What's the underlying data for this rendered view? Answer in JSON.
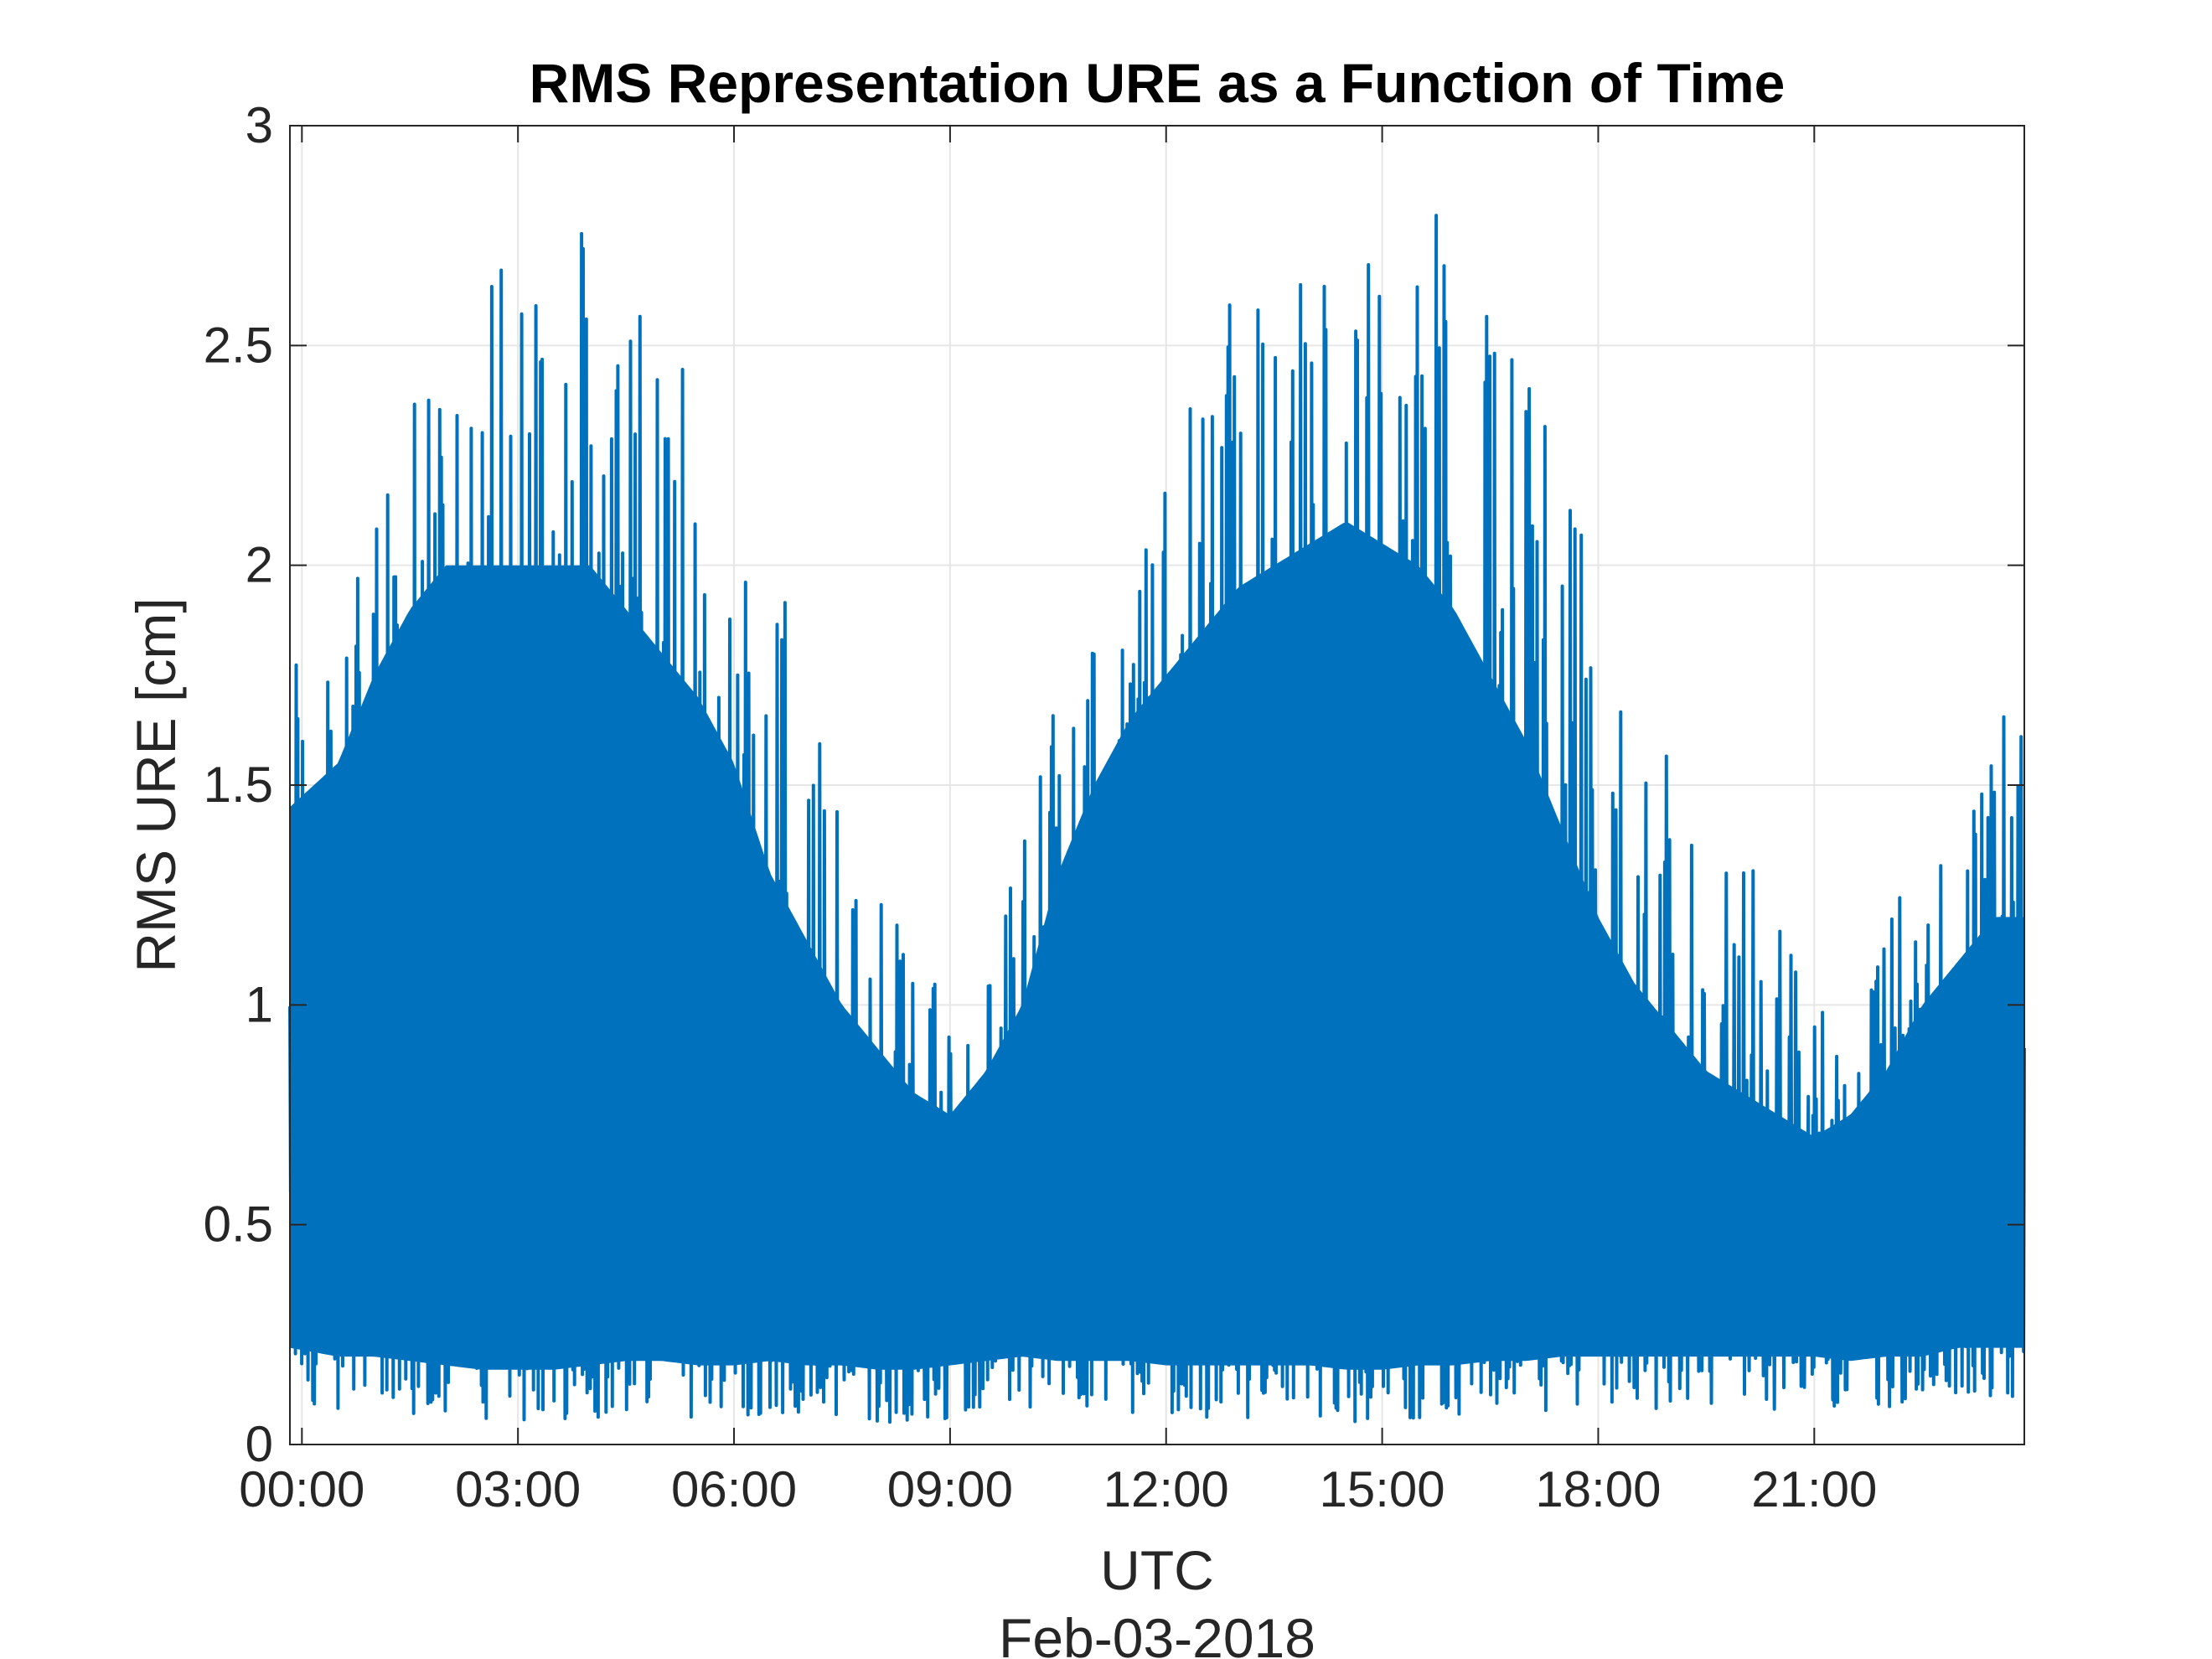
{
  "chart_data": {
    "type": "line",
    "title": "RMS Representation URE as a Function of Time",
    "xlabel": "UTC",
    "x_sublabel": "Feb-03-2018",
    "ylabel": "RMS URE [cm]",
    "xlim": [
      "23:50",
      "23:55"
    ],
    "ylim": [
      0,
      3
    ],
    "grid": true,
    "series": [
      {
        "color": "#0072BD",
        "x": [
          "23:50",
          "00:30",
          "01:00",
          "01:30",
          "02:00",
          "02:30",
          "03:00",
          "03:30",
          "04:00",
          "04:30",
          "05:00",
          "05:30",
          "06:00",
          "06:30",
          "07:00",
          "07:30",
          "08:00",
          "08:30",
          "09:00",
          "09:30",
          "10:00",
          "10:30",
          "11:00",
          "11:30",
          "12:00",
          "12:30",
          "13:00",
          "13:30",
          "14:00",
          "14:30",
          "15:00",
          "15:30",
          "16:00",
          "16:30",
          "17:00",
          "17:30",
          "18:00",
          "18:30",
          "19:00",
          "19:30",
          "20:00",
          "20:30",
          "21:00",
          "21:30",
          "22:00",
          "22:30",
          "23:00",
          "23:30",
          "23:55"
        ],
        "upper_envelope": [
          1.85,
          1.9,
          2.1,
          2.35,
          2.55,
          2.8,
          2.85,
          2.9,
          2.8,
          2.7,
          2.6,
          2.4,
          2.25,
          2.1,
          1.75,
          1.6,
          1.35,
          1.15,
          1.1,
          1.2,
          1.45,
          1.75,
          1.85,
          2.0,
          2.2,
          2.45,
          2.65,
          2.7,
          2.7,
          2.75,
          2.8,
          2.85,
          2.75,
          2.6,
          2.45,
          2.3,
          1.95,
          1.75,
          1.55,
          1.4,
          1.35,
          1.25,
          1.05,
          1.05,
          1.2,
          1.35,
          1.55,
          1.7,
          1.7
        ],
        "lower_envelope": [
          0.1,
          0.08,
          0.08,
          0.07,
          0.06,
          0.05,
          0.05,
          0.05,
          0.06,
          0.07,
          0.07,
          0.06,
          0.06,
          0.07,
          0.06,
          0.06,
          0.05,
          0.05,
          0.06,
          0.07,
          0.08,
          0.07,
          0.07,
          0.07,
          0.06,
          0.06,
          0.06,
          0.06,
          0.06,
          0.05,
          0.05,
          0.06,
          0.06,
          0.07,
          0.07,
          0.08,
          0.08,
          0.08,
          0.08,
          0.08,
          0.08,
          0.08,
          0.08,
          0.07,
          0.08,
          0.08,
          0.1,
          0.1,
          0.1
        ],
        "dense_band": [
          1.45,
          1.55,
          1.75,
          1.9,
          2.0,
          2.0,
          2.0,
          2.0,
          2.0,
          1.9,
          1.8,
          1.7,
          1.55,
          1.3,
          1.15,
          1.0,
          0.9,
          0.8,
          0.75,
          0.85,
          1.0,
          1.3,
          1.5,
          1.65,
          1.75,
          1.85,
          1.95,
          2.0,
          2.05,
          2.1,
          2.05,
          2.0,
          1.9,
          1.75,
          1.6,
          1.4,
          1.2,
          1.05,
          0.95,
          0.85,
          0.8,
          0.75,
          0.7,
          0.75,
          0.85,
          1.0,
          1.1,
          1.2,
          1.2
        ]
      }
    ],
    "xticks": [
      "00:00",
      "03:00",
      "06:00",
      "09:00",
      "12:00",
      "15:00",
      "18:00",
      "21:00"
    ],
    "yticks": [
      "0",
      "0.5",
      "1",
      "1.5",
      "2",
      "2.5",
      "3"
    ]
  }
}
